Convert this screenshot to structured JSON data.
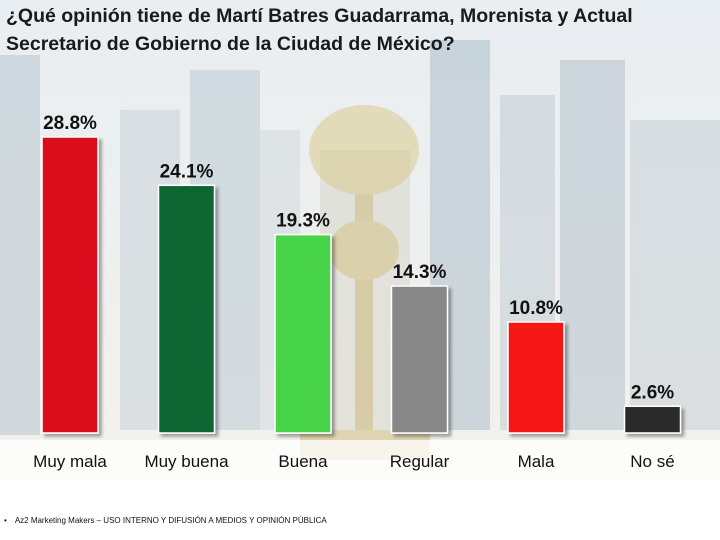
{
  "title": "¿Qué opinión tiene de Martí Batres Guadarrama, Morenista y Actual Secretario de Gobierno de la Ciudad de México?",
  "footer": {
    "text": "Az2 Marketing Makers – USO INTERNO Y DIFUSIÓN A MEDIOS Y OPINIÓN PÚBLICA"
  },
  "chart_data": {
    "type": "bar",
    "title": "¿Qué opinión tiene de Martí Batres Guadarrama, Morenista y Actual Secretario de Gobierno de la Ciudad de México?",
    "categories": [
      "Muy mala",
      "Muy buena",
      "Buena",
      "Regular",
      "Mala",
      "No sé"
    ],
    "values": [
      28.8,
      24.1,
      19.3,
      14.3,
      10.8,
      2.6
    ],
    "value_labels": [
      "28.8%",
      "24.1%",
      "19.3%",
      "14.3%",
      "10.8%",
      "2.6%"
    ],
    "colors": [
      "#d9111b",
      "#0f6630",
      "#46d44a",
      "#878787",
      "#f51212",
      "#2a2a2a"
    ],
    "xlabel": "",
    "ylabel": "",
    "ylim": [
      0,
      30
    ],
    "grid": false,
    "legend": "none"
  }
}
